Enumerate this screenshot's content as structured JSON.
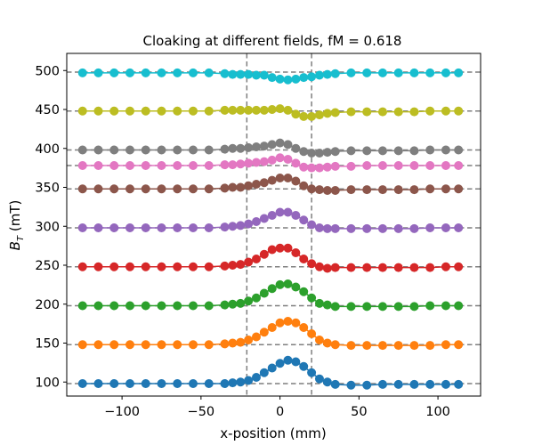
{
  "chart_data": {
    "type": "line",
    "title": "Cloaking at different fields, fM = 0.618",
    "xlabel": "x-position (mm)",
    "ylabel_main": "B",
    "ylabel_sub": "T",
    "ylabel_unit": " (mT)",
    "xlim": [
      -135,
      127
    ],
    "ylim": [
      82,
      522
    ],
    "xticks": [
      -100,
      -50,
      0,
      50,
      100
    ],
    "xtick_labels": [
      "−100",
      "−50",
      "0",
      "50",
      "100"
    ],
    "yticks": [
      100,
      150,
      200,
      250,
      300,
      350,
      400,
      450,
      500
    ],
    "ytick_labels": [
      "100",
      "150",
      "200",
      "250",
      "300",
      "350",
      "400",
      "450",
      "500"
    ],
    "vlines": [
      -21,
      20
    ],
    "hlines": [
      98,
      148,
      198,
      248,
      298,
      348,
      378,
      398,
      448,
      498
    ],
    "grid": false,
    "x": [
      -125,
      -115,
      -105,
      -95,
      -85,
      -75,
      -65,
      -55,
      -45,
      -35,
      -30,
      -25,
      -20,
      -15,
      -10,
      -5,
      0,
      5,
      10,
      15,
      20,
      25,
      30,
      35,
      45,
      55,
      65,
      75,
      85,
      95,
      105,
      113
    ],
    "series": [
      {
        "color": "#1f77b4",
        "values": [
          98,
          98,
          98,
          98,
          98,
          98,
          98,
          98,
          98,
          98,
          99,
          100,
          102,
          106,
          112,
          118,
          124,
          128,
          126,
          120,
          112,
          104,
          100,
          97,
          96,
          96,
          97,
          97,
          97,
          97,
          97,
          97
        ]
      },
      {
        "color": "#ff7f0e",
        "values": [
          148,
          148,
          148,
          148,
          148,
          148,
          148,
          148,
          148,
          149,
          150,
          151,
          154,
          158,
          164,
          170,
          176,
          178,
          176,
          170,
          162,
          154,
          150,
          148,
          147,
          147,
          147,
          147,
          147,
          147,
          148,
          148
        ]
      },
      {
        "color": "#2ca02c",
        "values": [
          198,
          198,
          198,
          198,
          198,
          198,
          198,
          198,
          198,
          199,
          200,
          201,
          204,
          208,
          214,
          220,
          225,
          226,
          222,
          216,
          208,
          201,
          199,
          197,
          197,
          197,
          197,
          197,
          197,
          198,
          198,
          198
        ]
      },
      {
        "color": "#d62728",
        "values": [
          248,
          248,
          248,
          248,
          248,
          248,
          248,
          248,
          248,
          249,
          250,
          251,
          254,
          258,
          264,
          270,
          272,
          272,
          266,
          258,
          252,
          248,
          246,
          247,
          247,
          247,
          247,
          247,
          247,
          247,
          248,
          248
        ]
      },
      {
        "color": "#9467bd",
        "values": [
          298,
          298,
          298,
          298,
          298,
          298,
          298,
          298,
          298,
          299,
          300,
          301,
          303,
          306,
          310,
          314,
          318,
          318,
          314,
          308,
          302,
          298,
          297,
          297,
          297,
          297,
          297,
          297,
          297,
          298,
          298,
          298
        ]
      },
      {
        "color": "#8c564b",
        "values": [
          348,
          348,
          348,
          348,
          348,
          348,
          348,
          348,
          348,
          349,
          350,
          350,
          352,
          354,
          356,
          359,
          362,
          362,
          358,
          352,
          348,
          347,
          346,
          346,
          347,
          347,
          347,
          347,
          347,
          348,
          348,
          348
        ]
      },
      {
        "color": "#e377c2",
        "values": [
          378,
          378,
          378,
          378,
          378,
          378,
          378,
          378,
          378,
          379,
          379,
          380,
          381,
          382,
          383,
          385,
          388,
          386,
          381,
          376,
          375,
          375,
          376,
          377,
          377,
          378,
          378,
          378,
          378,
          378,
          378,
          378
        ]
      },
      {
        "color": "#7f7f7f",
        "values": [
          398,
          398,
          398,
          398,
          398,
          398,
          398,
          398,
          398,
          399,
          400,
          400,
          401,
          402,
          403,
          405,
          407,
          405,
          400,
          396,
          394,
          394,
          395,
          396,
          397,
          397,
          397,
          397,
          397,
          398,
          398,
          398
        ]
      },
      {
        "color": "#bcbd22",
        "values": [
          448,
          448,
          448,
          448,
          448,
          448,
          448,
          448,
          448,
          449,
          449,
          449,
          449,
          449,
          449,
          450,
          451,
          449,
          444,
          441,
          441,
          443,
          445,
          446,
          447,
          447,
          447,
          447,
          447,
          448,
          448,
          448
        ]
      },
      {
        "color": "#17becf",
        "values": [
          497,
          497,
          497,
          497,
          497,
          497,
          497,
          497,
          497,
          496,
          495,
          495,
          495,
          494,
          494,
          491,
          489,
          488,
          489,
          491,
          492,
          494,
          495,
          496,
          497,
          497,
          497,
          497,
          497,
          497,
          497,
          497
        ]
      }
    ]
  }
}
